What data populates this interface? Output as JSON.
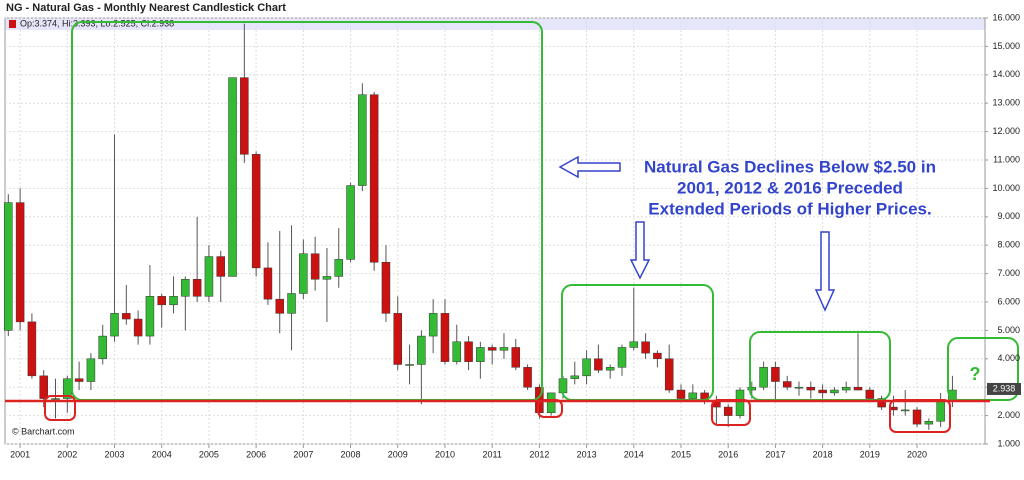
{
  "chart_data": {
    "type": "candlestick",
    "title": "NG - Natural Gas - Monthly Nearest Candlestick Chart",
    "legend_text": "Op:3.374, Hi:3.393, Lo:2.525, Cl:2.938",
    "last_price": 2.938,
    "last_price_label": "2.938",
    "credit": "© Barchart.com",
    "annotation_lines": [
      "Natural Gas Declines Below $2.50 in",
      "2001, 2012 & 2016 Preceded",
      "Extended Periods of Higher Prices."
    ],
    "question_mark": "?",
    "up_color": "#33bb33",
    "down_color": "#cc1111",
    "grid": true,
    "x": [
      2000.75,
      2001,
      2001.25,
      2001.5,
      2001.75,
      2002,
      2002.25,
      2002.5,
      2002.75,
      2003,
      2003.25,
      2003.5,
      2003.75,
      2004,
      2004.25,
      2004.5,
      2004.75,
      2005,
      2005.25,
      2005.5,
      2005.75,
      2006,
      2006.25,
      2006.5,
      2006.75,
      2007,
      2007.25,
      2007.5,
      2007.75,
      2008,
      2008.25,
      2008.5,
      2008.75,
      2009,
      2009.25,
      2009.5,
      2009.75,
      2010,
      2010.25,
      2010.5,
      2010.75,
      2011,
      2011.25,
      2011.5,
      2011.75,
      2012,
      2012.25,
      2012.5,
      2012.75,
      2013,
      2013.25,
      2013.5,
      2013.75,
      2014,
      2014.25,
      2014.5,
      2014.75,
      2015,
      2015.25,
      2015.5,
      2015.75,
      2016,
      2016.25,
      2016.5,
      2016.75,
      2017,
      2017.25,
      2017.5,
      2017.75,
      2018,
      2018.25,
      2018.5,
      2018.75,
      2019,
      2019.25,
      2019.5,
      2019.75,
      2020,
      2020.25,
      2020.5,
      2020.75
    ],
    "open": [
      5.0,
      9.5,
      5.3,
      3.4,
      2.6,
      2.6,
      3.3,
      3.2,
      4.0,
      4.8,
      5.6,
      5.4,
      4.8,
      6.2,
      5.9,
      6.2,
      6.8,
      6.2,
      7.6,
      6.9,
      13.9,
      11.2,
      7.2,
      6.1,
      5.6,
      6.3,
      7.7,
      6.8,
      6.9,
      7.5,
      10.1,
      13.3,
      7.4,
      5.6,
      3.8,
      3.8,
      4.8,
      5.6,
      3.9,
      4.6,
      3.9,
      4.4,
      4.3,
      4.4,
      3.7,
      3.0,
      2.1,
      2.8,
      3.3,
      3.4,
      4.0,
      3.6,
      3.7,
      4.4,
      4.6,
      4.2,
      4.0,
      2.9,
      2.6,
      2.8,
      2.5,
      2.3,
      2.0,
      2.9,
      3.0,
      3.7,
      3.2,
      3.0,
      3.0,
      2.9,
      2.8,
      2.9,
      3.0,
      2.9,
      2.6,
      2.3,
      2.2,
      2.2,
      1.7,
      1.8,
      2.5
    ],
    "high": [
      9.8,
      10.0,
      5.6,
      3.6,
      3.3,
      3.4,
      3.9,
      4.2,
      5.2,
      11.9,
      6.6,
      5.7,
      7.3,
      6.3,
      6.9,
      6.9,
      9.0,
      8.0,
      7.8,
      13.9,
      15.8,
      11.3,
      8.1,
      8.5,
      8.7,
      8.2,
      8.3,
      7.9,
      8.6,
      10.2,
      13.7,
      13.4,
      8.0,
      6.2,
      4.5,
      5.0,
      6.1,
      6.1,
      5.2,
      4.8,
      4.6,
      4.5,
      4.9,
      4.7,
      3.8,
      3.1,
      2.8,
      3.4,
      3.9,
      4.3,
      4.5,
      3.8,
      4.5,
      6.5,
      4.9,
      4.3,
      4.5,
      3.1,
      3.1,
      2.9,
      2.7,
      2.4,
      3.0,
      3.2,
      3.9,
      3.9,
      3.4,
      3.2,
      3.2,
      3.1,
      3.0,
      3.2,
      4.9,
      3.0,
      2.7,
      2.7,
      2.9,
      2.3,
      1.9,
      2.8,
      3.4
    ],
    "low": [
      4.8,
      5.0,
      3.3,
      2.3,
      1.9,
      2.1,
      2.9,
      2.9,
      3.8,
      4.6,
      5.2,
      4.5,
      4.5,
      5.1,
      5.6,
      5.0,
      6.0,
      6.0,
      6.0,
      6.9,
      10.9,
      6.9,
      5.9,
      4.9,
      4.3,
      6.1,
      6.4,
      5.3,
      6.5,
      7.4,
      9.9,
      7.1,
      5.3,
      3.6,
      3.1,
      2.4,
      4.2,
      3.8,
      3.8,
      3.6,
      3.3,
      3.8,
      4.0,
      3.6,
      2.9,
      1.9,
      2.0,
      2.6,
      3.1,
      3.1,
      3.5,
      3.3,
      3.4,
      4.3,
      4.0,
      3.7,
      2.8,
      2.5,
      2.5,
      2.4,
      1.7,
      1.6,
      1.9,
      2.6,
      2.9,
      2.5,
      2.9,
      2.7,
      2.6,
      2.6,
      2.7,
      2.8,
      2.9,
      2.5,
      2.2,
      2.0,
      2.0,
      1.6,
      1.5,
      1.6,
      2.3
    ],
    "close": [
      9.5,
      5.3,
      3.4,
      2.6,
      2.6,
      3.3,
      3.2,
      4.0,
      4.8,
      5.6,
      5.4,
      4.8,
      6.2,
      5.9,
      6.2,
      6.8,
      6.2,
      7.6,
      6.9,
      13.9,
      11.2,
      7.2,
      6.1,
      5.6,
      6.3,
      7.7,
      6.8,
      6.9,
      7.5,
      10.1,
      13.3,
      7.4,
      5.6,
      3.8,
      3.8,
      4.8,
      5.6,
      3.9,
      4.6,
      3.9,
      4.4,
      4.3,
      4.4,
      3.7,
      3.0,
      2.1,
      2.8,
      3.3,
      3.4,
      4.0,
      3.6,
      3.7,
      4.4,
      4.6,
      4.2,
      4.0,
      2.9,
      2.6,
      2.8,
      2.5,
      2.3,
      2.0,
      2.9,
      3.0,
      3.7,
      3.2,
      3.0,
      3.0,
      2.9,
      2.8,
      2.9,
      3.0,
      2.9,
      2.6,
      2.3,
      2.2,
      2.2,
      1.7,
      1.8,
      2.5,
      2.9
    ],
    "xlim": [
      2000.68,
      2021.44
    ],
    "xticks": [
      2001,
      2002,
      2003,
      2004,
      2005,
      2006,
      2007,
      2008,
      2009,
      2010,
      2011,
      2012,
      2013,
      2014,
      2015,
      2016,
      2017,
      2018,
      2019,
      2020
    ],
    "ylim": [
      1,
      16
    ],
    "yticks": [
      {
        "value": 1,
        "label": "1.000"
      },
      {
        "value": 2,
        "label": "2.000"
      },
      {
        "value": 3,
        "label": "3.000"
      },
      {
        "value": 4,
        "label": "4.000"
      },
      {
        "value": 5,
        "label": "5.000"
      },
      {
        "value": 6,
        "label": "6.000"
      },
      {
        "value": 7,
        "label": "7.000"
      },
      {
        "value": 8,
        "label": "8.000"
      },
      {
        "value": 9,
        "label": "9.000"
      },
      {
        "value": 10,
        "label": "10.000"
      },
      {
        "value": 11,
        "label": "11.000"
      },
      {
        "value": 12,
        "label": "12.000"
      },
      {
        "value": 13,
        "label": "13.000"
      },
      {
        "value": 14,
        "label": "14.000"
      },
      {
        "value": 15,
        "label": "15.000"
      },
      {
        "value": 16,
        "label": "16.000"
      }
    ]
  }
}
